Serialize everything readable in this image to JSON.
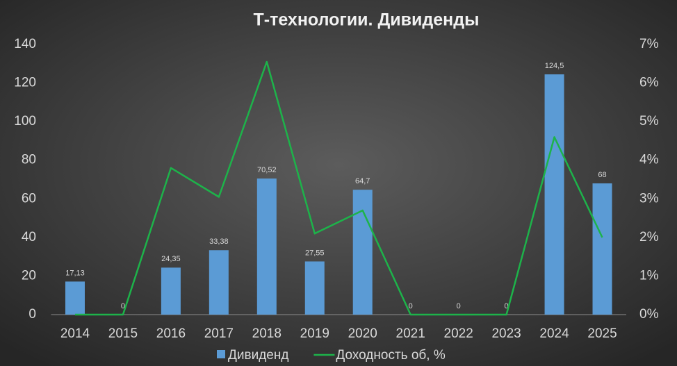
{
  "chart_data": {
    "type": "bar_line",
    "title": "Т-технологии. Дивиденды",
    "categories": [
      "2014",
      "2015",
      "2016",
      "2017",
      "2018",
      "2019",
      "2020",
      "2021",
      "2022",
      "2023",
      "2024",
      "2025"
    ],
    "series": [
      {
        "name": "Дивиденд",
        "type": "bar",
        "color": "#5b9bd5",
        "values": [
          17.13,
          0,
          24.35,
          33.38,
          70.52,
          27.55,
          64.7,
          0,
          0,
          0,
          124.5,
          68
        ],
        "value_labels": [
          "17,13",
          "0",
          "24,35",
          "33,38",
          "70,52",
          "27,55",
          "64,7",
          "0",
          "0",
          "0",
          "124,5",
          "68"
        ]
      },
      {
        "name": "Доходность об, %",
        "type": "line",
        "axis": "y2",
        "color": "#1db34a",
        "values": [
          0,
          0,
          3.8,
          3.05,
          6.55,
          2.1,
          2.7,
          0,
          0,
          0,
          4.6,
          2.0
        ]
      }
    ],
    "ylim": [
      0,
      140
    ],
    "yticks": [
      0,
      20,
      40,
      60,
      80,
      100,
      120,
      140
    ],
    "y2lim": [
      0,
      7
    ],
    "y2ticks": [
      {
        "value": 0,
        "label": "0%"
      },
      {
        "value": 1,
        "label": "1%"
      },
      {
        "value": 2,
        "label": "2%"
      },
      {
        "value": 3,
        "label": "3%"
      },
      {
        "value": 4,
        "label": "4%"
      },
      {
        "value": 5,
        "label": "5%"
      },
      {
        "value": 6,
        "label": "6%"
      },
      {
        "value": 7,
        "label": "7%"
      }
    ],
    "grid": false,
    "legend": "bottom"
  }
}
